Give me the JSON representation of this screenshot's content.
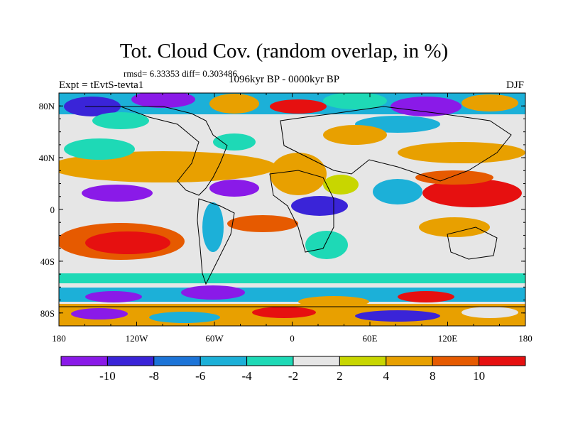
{
  "title": "Tot. Cloud Cov. (random overlap, in %)",
  "stats": "rmsd= 6.33353  diff= 0.303486",
  "expt": "Expt = tEvtS-tevta1",
  "period": "1096kyr BP - 0000kyr BP",
  "season": "DJF",
  "lat_ticks": [
    "80N",
    "40N",
    "0",
    "40S",
    "80S"
  ],
  "lat_values": [
    80,
    40,
    0,
    -40,
    -80
  ],
  "lon_ticks": [
    "180",
    "120W",
    "60W",
    "0",
    "60E",
    "120E",
    "180"
  ],
  "lon_values": [
    -180,
    -120,
    -60,
    0,
    60,
    120,
    180
  ],
  "colorbar": {
    "labels": [
      "-10",
      "-8",
      "-6",
      "-4",
      "-2",
      "2",
      "4",
      "8",
      "10"
    ],
    "colors": [
      "#8a1ae8",
      "#3a24d8",
      "#1c74d8",
      "#1cb0d8",
      "#1ed9b6",
      "#e6e6e6",
      "#c8d600",
      "#e8a000",
      "#e65a00",
      "#e61010"
    ]
  }
}
